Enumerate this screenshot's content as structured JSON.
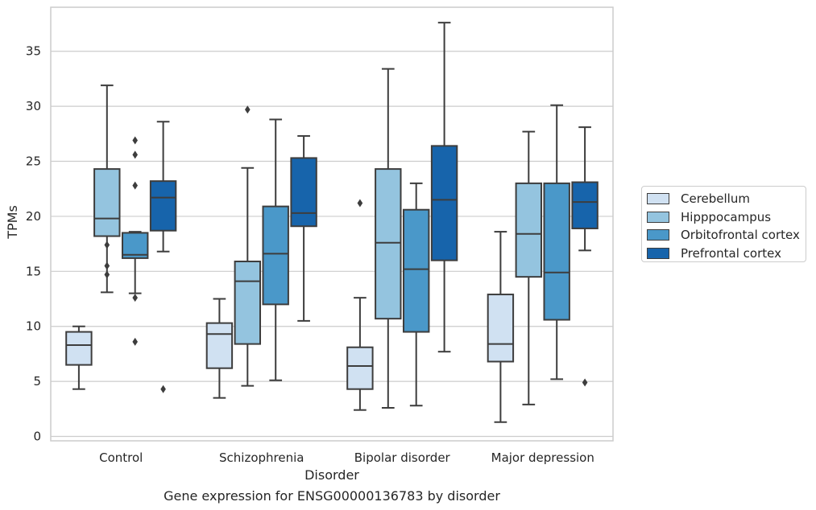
{
  "chart_data": {
    "type": "box",
    "title": "Gene expression for ENSG00000136783 by disorder",
    "xlabel": "Disorder",
    "ylabel": "TPMs",
    "ylim": [
      -0.4,
      39
    ],
    "yticks": [
      0,
      5,
      10,
      15,
      20,
      25,
      30,
      35
    ],
    "grid": "horizontal",
    "legend_position": "right",
    "categories": [
      "Control",
      "Schizophrenia",
      "Bipolar disorder",
      "Major depression"
    ],
    "series": [
      {
        "name": "Cerebellum",
        "color": "#d0e1f2",
        "boxes": [
          {
            "whisker_low": 4.3,
            "q1": 6.5,
            "median": 8.3,
            "q3": 9.5,
            "whisker_high": 10.0,
            "outliers": []
          },
          {
            "whisker_low": 3.5,
            "q1": 6.2,
            "median": 9.3,
            "q3": 10.3,
            "whisker_high": 12.5,
            "outliers": []
          },
          {
            "whisker_low": 2.4,
            "q1": 4.3,
            "median": 6.4,
            "q3": 8.1,
            "whisker_high": 12.6,
            "outliers": [
              21.2
            ]
          },
          {
            "whisker_low": 1.3,
            "q1": 6.8,
            "median": 8.4,
            "q3": 12.9,
            "whisker_high": 18.6,
            "outliers": []
          }
        ]
      },
      {
        "name": "Hipppocampus",
        "color": "#94c4df",
        "boxes": [
          {
            "whisker_low": 13.1,
            "q1": 18.2,
            "median": 19.8,
            "q3": 24.3,
            "whisker_high": 31.9,
            "outliers": [
              17.4,
              15.5,
              14.7
            ]
          },
          {
            "whisker_low": 4.6,
            "q1": 8.4,
            "median": 14.1,
            "q3": 15.9,
            "whisker_high": 24.4,
            "outliers": [
              29.7
            ]
          },
          {
            "whisker_low": 2.6,
            "q1": 10.7,
            "median": 17.6,
            "q3": 24.3,
            "whisker_high": 33.4,
            "outliers": []
          },
          {
            "whisker_low": 2.9,
            "q1": 14.5,
            "median": 18.4,
            "q3": 23.0,
            "whisker_high": 27.7,
            "outliers": []
          }
        ]
      },
      {
        "name": "Orbitofrontal cortex",
        "color": "#4a98c9",
        "boxes": [
          {
            "whisker_low": 13.0,
            "q1": 16.2,
            "median": 16.5,
            "q3": 18.5,
            "whisker_high": 18.6,
            "outliers": [
              26.9,
              25.6,
              22.8,
              12.6,
              8.6
            ]
          },
          {
            "whisker_low": 5.1,
            "q1": 12.0,
            "median": 16.6,
            "q3": 20.9,
            "whisker_high": 28.8,
            "outliers": []
          },
          {
            "whisker_low": 2.8,
            "q1": 9.5,
            "median": 15.2,
            "q3": 20.6,
            "whisker_high": 23.0,
            "outliers": []
          },
          {
            "whisker_low": 5.2,
            "q1": 10.6,
            "median": 14.9,
            "q3": 23.0,
            "whisker_high": 30.1,
            "outliers": []
          }
        ]
      },
      {
        "name": "Prefrontal cortex",
        "color": "#1764ab",
        "boxes": [
          {
            "whisker_low": 16.8,
            "q1": 18.7,
            "median": 21.7,
            "q3": 23.2,
            "whisker_high": 28.6,
            "outliers": [
              4.3
            ]
          },
          {
            "whisker_low": 10.5,
            "q1": 19.1,
            "median": 20.3,
            "q3": 25.3,
            "whisker_high": 27.3,
            "outliers": []
          },
          {
            "whisker_low": 7.7,
            "q1": 16.0,
            "median": 21.5,
            "q3": 26.4,
            "whisker_high": 37.6,
            "outliers": []
          },
          {
            "whisker_low": 16.9,
            "q1": 18.9,
            "median": 21.3,
            "q3": 23.1,
            "whisker_high": 28.1,
            "outliers": [
              4.9
            ]
          }
        ]
      }
    ]
  }
}
